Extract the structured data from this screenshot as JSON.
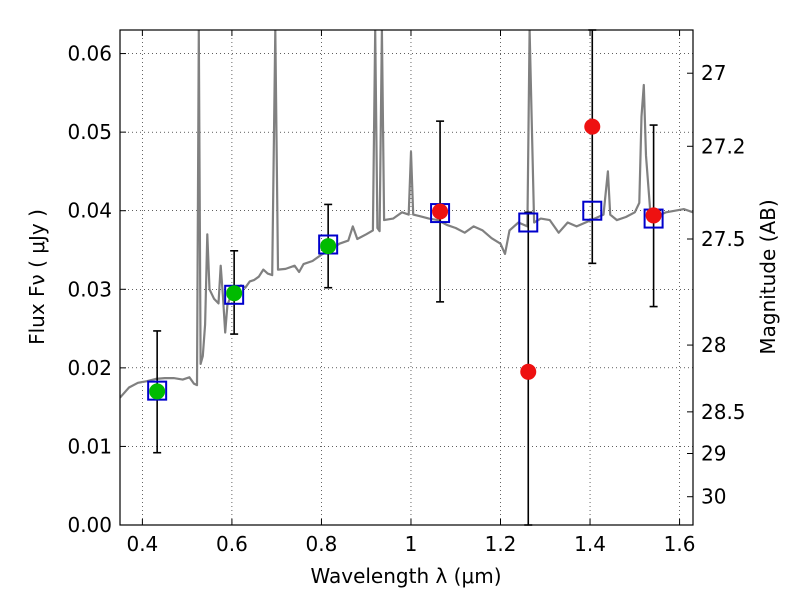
{
  "chart_data": {
    "type": "scatter",
    "xlabel": "Wavelength  λ (μm)",
    "ylabel": "Flux  Fν  ( μJy )",
    "ylabel_right": "Magnitude (AB)",
    "xlim": [
      0.35,
      1.63
    ],
    "ylim": [
      0.0,
      0.063
    ],
    "x_ticks": [
      0.4,
      0.6,
      0.8,
      1,
      1.2,
      1.4,
      1.6
    ],
    "x_tick_labels": [
      "0.4",
      "0.6",
      "0.8",
      "1",
      "1.2",
      "1.4",
      "1.6"
    ],
    "y_ticks": [
      0.0,
      0.01,
      0.02,
      0.03,
      0.04,
      0.05,
      0.06
    ],
    "y_tick_labels": [
      "0.00",
      "0.01",
      "0.02",
      "0.03",
      "0.04",
      "0.05",
      "0.06"
    ],
    "right_ticks": [
      {
        "flux": 0.0575,
        "label": "27"
      },
      {
        "flux": 0.0482,
        "label": "27.2"
      },
      {
        "flux": 0.0364,
        "label": "27.5"
      },
      {
        "flux": 0.0229,
        "label": "28"
      },
      {
        "flux": 0.0144,
        "label": "28.5"
      },
      {
        "flux": 0.0091,
        "label": "29"
      },
      {
        "flux": 0.0036,
        "label": "30"
      }
    ],
    "grid": true,
    "colors": {
      "spectrum": "#808080",
      "model_box": "#0000cc",
      "green": "#00bb00",
      "red": "#ee1111",
      "errorbar": "#000000"
    },
    "model_points": {
      "x": [
        0.433,
        0.605,
        0.815,
        1.065,
        1.262,
        1.405,
        1.542
      ],
      "y": [
        0.0171,
        0.0293,
        0.0357,
        0.0397,
        0.0385,
        0.04,
        0.039
      ]
    },
    "observed_points": [
      {
        "x": 0.433,
        "y": 0.017,
        "yerr_low": 0.0092,
        "yerr_high": 0.0247,
        "color": "green"
      },
      {
        "x": 0.605,
        "y": 0.0295,
        "yerr_low": 0.0243,
        "yerr_high": 0.0349,
        "color": "green"
      },
      {
        "x": 0.815,
        "y": 0.0355,
        "yerr_low": 0.0302,
        "yerr_high": 0.0408,
        "color": "green"
      },
      {
        "x": 1.065,
        "y": 0.0399,
        "yerr_low": 0.0284,
        "yerr_high": 0.0514,
        "color": "red"
      },
      {
        "x": 1.262,
        "y": 0.0195,
        "yerr_low": 0.0,
        "yerr_high": 0.0398,
        "color": "red"
      },
      {
        "x": 1.405,
        "y": 0.0507,
        "yerr_low": 0.0333,
        "yerr_high": 0.063,
        "color": "red"
      },
      {
        "x": 1.542,
        "y": 0.0394,
        "yerr_low": 0.0278,
        "yerr_high": 0.0509,
        "color": "red"
      }
    ],
    "spectrum": [
      [
        0.35,
        0.0162
      ],
      [
        0.37,
        0.0175
      ],
      [
        0.39,
        0.0181
      ],
      [
        0.41,
        0.0183
      ],
      [
        0.43,
        0.0186
      ],
      [
        0.45,
        0.0187
      ],
      [
        0.47,
        0.0187
      ],
      [
        0.49,
        0.0185
      ],
      [
        0.505,
        0.0188
      ],
      [
        0.515,
        0.018
      ],
      [
        0.522,
        0.0178
      ],
      [
        0.526,
        0.063
      ],
      [
        0.53,
        0.0205
      ],
      [
        0.535,
        0.0215
      ],
      [
        0.54,
        0.0255
      ],
      [
        0.545,
        0.037
      ],
      [
        0.55,
        0.03
      ],
      [
        0.56,
        0.0288
      ],
      [
        0.57,
        0.0282
      ],
      [
        0.575,
        0.033
      ],
      [
        0.58,
        0.029
      ],
      [
        0.585,
        0.0245
      ],
      [
        0.59,
        0.028
      ],
      [
        0.6,
        0.0295
      ],
      [
        0.61,
        0.03
      ],
      [
        0.62,
        0.0305
      ],
      [
        0.63,
        0.0302
      ],
      [
        0.64,
        0.031
      ],
      [
        0.65,
        0.0312
      ],
      [
        0.66,
        0.0316
      ],
      [
        0.67,
        0.0325
      ],
      [
        0.68,
        0.032
      ],
      [
        0.69,
        0.0318
      ],
      [
        0.697,
        0.063
      ],
      [
        0.703,
        0.0325
      ],
      [
        0.72,
        0.0326
      ],
      [
        0.74,
        0.033
      ],
      [
        0.75,
        0.0322
      ],
      [
        0.76,
        0.0332
      ],
      [
        0.78,
        0.0336
      ],
      [
        0.8,
        0.0344
      ],
      [
        0.82,
        0.035
      ],
      [
        0.84,
        0.0358
      ],
      [
        0.86,
        0.0362
      ],
      [
        0.87,
        0.038
      ],
      [
        0.88,
        0.0364
      ],
      [
        0.9,
        0.037
      ],
      [
        0.915,
        0.0375
      ],
      [
        0.92,
        0.063
      ],
      [
        0.925,
        0.0378
      ],
      [
        0.93,
        0.0374
      ],
      [
        0.935,
        0.063
      ],
      [
        0.94,
        0.0388
      ],
      [
        0.96,
        0.039
      ],
      [
        0.98,
        0.0398
      ],
      [
        0.995,
        0.0395
      ],
      [
        1.0,
        0.0475
      ],
      [
        1.005,
        0.0395
      ],
      [
        1.02,
        0.0393
      ],
      [
        1.04,
        0.039
      ],
      [
        1.06,
        0.0388
      ],
      [
        1.08,
        0.0382
      ],
      [
        1.1,
        0.0378
      ],
      [
        1.12,
        0.0372
      ],
      [
        1.14,
        0.038
      ],
      [
        1.16,
        0.0375
      ],
      [
        1.18,
        0.0365
      ],
      [
        1.2,
        0.0358
      ],
      [
        1.21,
        0.0345
      ],
      [
        1.22,
        0.0375
      ],
      [
        1.24,
        0.0385
      ],
      [
        1.26,
        0.038
      ],
      [
        1.265,
        0.063
      ],
      [
        1.275,
        0.0385
      ],
      [
        1.29,
        0.039
      ],
      [
        1.31,
        0.0388
      ],
      [
        1.33,
        0.0372
      ],
      [
        1.35,
        0.0385
      ],
      [
        1.37,
        0.038
      ],
      [
        1.39,
        0.0385
      ],
      [
        1.41,
        0.039
      ],
      [
        1.43,
        0.0395
      ],
      [
        1.44,
        0.045
      ],
      [
        1.445,
        0.0395
      ],
      [
        1.46,
        0.0388
      ],
      [
        1.48,
        0.0392
      ],
      [
        1.5,
        0.0398
      ],
      [
        1.51,
        0.041
      ],
      [
        1.515,
        0.052
      ],
      [
        1.52,
        0.056
      ],
      [
        1.525,
        0.047
      ],
      [
        1.535,
        0.0395
      ],
      [
        1.55,
        0.0393
      ],
      [
        1.57,
        0.0398
      ],
      [
        1.59,
        0.04
      ],
      [
        1.61,
        0.0402
      ],
      [
        1.63,
        0.0398
      ]
    ]
  }
}
